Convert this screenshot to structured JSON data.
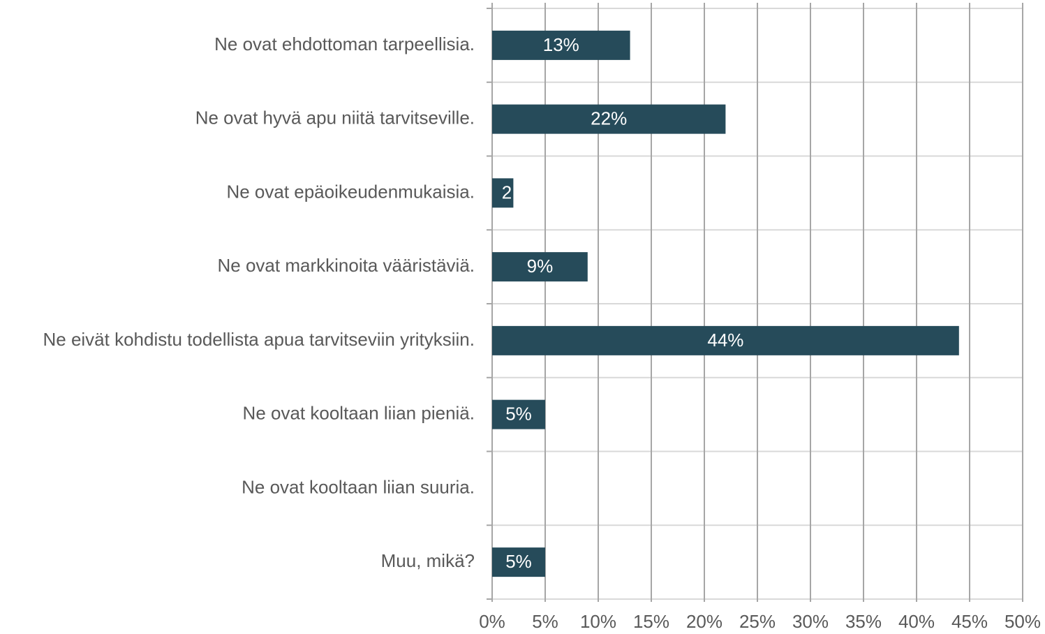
{
  "chart_data": {
    "type": "bar",
    "orientation": "horizontal",
    "categories": [
      "Ne ovat ehdottoman tarpeellisia.",
      "Ne ovat hyvä apu niitä tarvitseville.",
      "Ne ovat epäoikeudenmukaisia.",
      "Ne ovat markkinoita vääristäviä.",
      "Ne eivät kohdistu todellista apua tarvitseviin yrityksiin.",
      "Ne ovat kooltaan liian pieniä.",
      "Ne ovat kooltaan liian suuria.",
      "Muu, mikä?"
    ],
    "values": [
      13,
      22,
      2,
      9,
      44,
      5,
      0,
      5
    ],
    "value_labels": [
      "13%",
      "22%",
      "2",
      "9%",
      "44%",
      "5%",
      null,
      "5%"
    ],
    "color": "#264b5a",
    "xlim": [
      0,
      50
    ],
    "xticks": [
      {
        "value": 0,
        "label": "0%"
      },
      {
        "value": 5,
        "label": "5%"
      },
      {
        "value": 10,
        "label": "10%"
      },
      {
        "value": 15,
        "label": "15%"
      },
      {
        "value": 20,
        "label": "20%"
      },
      {
        "value": 25,
        "label": "25%"
      },
      {
        "value": 30,
        "label": "30%"
      },
      {
        "value": 35,
        "label": "35%"
      },
      {
        "value": 40,
        "label": "40%"
      },
      {
        "value": 45,
        "label": "45%"
      },
      {
        "value": 50,
        "label": "50%"
      }
    ],
    "grid": true
  }
}
